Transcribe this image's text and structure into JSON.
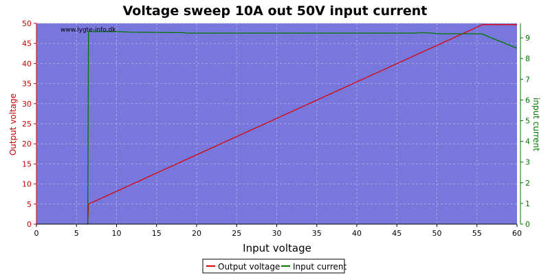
{
  "chart_data": {
    "type": "line",
    "title": "Voltage sweep 10A out 50V input current",
    "xlabel": "Input voltage",
    "ylabel_left": "Output voltage",
    "ylabel_right": "input current",
    "watermark": "www.lygte-info.dk",
    "xlim": [
      0,
      60
    ],
    "ylim_left": [
      0,
      50
    ],
    "ylim_right": [
      0,
      9.7
    ],
    "x_ticks": [
      0,
      5,
      10,
      15,
      20,
      25,
      30,
      35,
      40,
      45,
      50,
      55,
      60
    ],
    "y_left_ticks": [
      0,
      5,
      10,
      15,
      20,
      25,
      30,
      35,
      40,
      45,
      50
    ],
    "y_right_ticks": [
      0,
      1,
      2,
      3,
      4,
      5,
      6,
      7,
      8,
      9
    ],
    "grid": true,
    "legend_position": "bottom-center",
    "colors": {
      "plot_bg": "#7878dc",
      "grid": "#a8a8ec",
      "output_voltage": "#dd0000",
      "input_current": "#007700",
      "left_axis": "#cc0000",
      "right_axis": "#007700"
    },
    "series": [
      {
        "name": "Output voltage",
        "axis": "left",
        "points": [
          [
            6.3,
            0
          ],
          [
            6.4,
            0
          ],
          [
            6.5,
            5.0
          ],
          [
            55.7,
            49.7
          ],
          [
            60,
            49.7
          ]
        ]
      },
      {
        "name": "Input current",
        "axis": "right",
        "points": [
          [
            6.4,
            0
          ],
          [
            6.5,
            9.3
          ],
          [
            10,
            9.3
          ],
          [
            12.2,
            9.27
          ],
          [
            18.5,
            9.25
          ],
          [
            18.6,
            9.23
          ],
          [
            47,
            9.23
          ],
          [
            48.5,
            9.25
          ],
          [
            50.5,
            9.2
          ],
          [
            55.6,
            9.2
          ],
          [
            56.5,
            9.05
          ],
          [
            60,
            8.5
          ]
        ]
      }
    ]
  }
}
